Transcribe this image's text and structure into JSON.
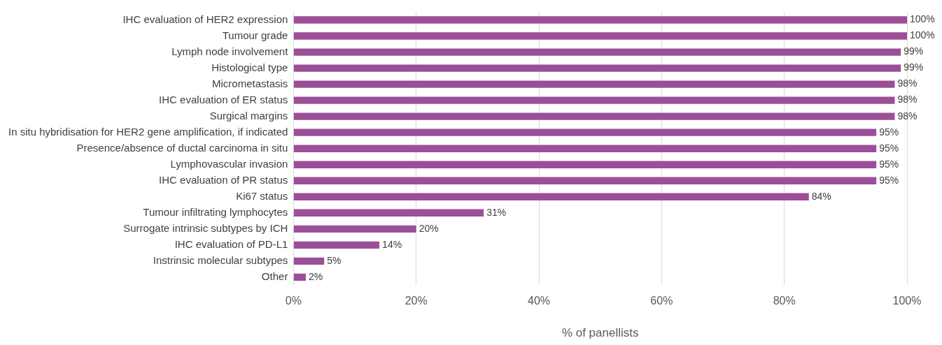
{
  "chart_data": {
    "type": "bar",
    "orientation": "horizontal",
    "xlabel": "% of panellists",
    "categories": [
      "IHC evaluation of HER2 expression",
      "Tumour grade",
      "Lymph node involvement",
      "Histological type",
      "Micrometastasis",
      "IHC evaluation of ER status",
      "Surgical margins",
      "In situ hybridisation for HER2 gene amplification, if indicated",
      "Presence/absence of ductal carcinoma in situ",
      "Lymphovascular invasion",
      "IHC evaluation of PR status",
      "Ki67 status",
      "Tumour infiltrating lymphocytes",
      "Surrogate intrinsic subtypes by ICH",
      "IHC evaluation of PD-L1",
      "Instrinsic molecular subtypes",
      "Other"
    ],
    "values": [
      100,
      100,
      99,
      99,
      98,
      98,
      98,
      95,
      95,
      95,
      95,
      84,
      31,
      20,
      14,
      5,
      2
    ],
    "value_labels": [
      "100%",
      "100%",
      "99%",
      "99%",
      "98%",
      "98%",
      "98%",
      "95%",
      "95%",
      "95%",
      "95%",
      "84%",
      "31%",
      "20%",
      "14%",
      "5%",
      "2%"
    ],
    "color": "#9b4f96",
    "xlim": [
      0,
      100
    ],
    "xticks": [
      {
        "value": 0,
        "label": "0%"
      },
      {
        "value": 20,
        "label": "20%"
      },
      {
        "value": 40,
        "label": "40%"
      },
      {
        "value": 60,
        "label": "60%"
      },
      {
        "value": 80,
        "label": "80%"
      },
      {
        "value": 100,
        "label": "100%"
      }
    ],
    "grid": "x",
    "legend": false
  }
}
